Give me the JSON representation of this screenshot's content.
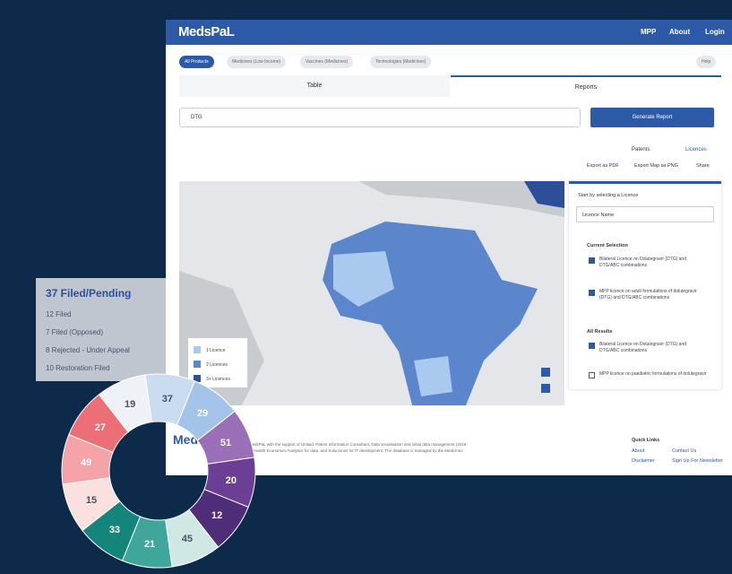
{
  "header": {
    "logo": "MedsPaL",
    "nav": [
      "MPP",
      "About",
      "Login"
    ]
  },
  "filters": [
    "All Products",
    "Medicines (Low Income)",
    "Vaccines (Medicines)",
    "Technologies (Medicines)"
  ],
  "help": "Help",
  "tabs": [
    "Table",
    "Reports"
  ],
  "select": "DTG",
  "generate": "Generate Report",
  "views": [
    "Patents",
    "Licences"
  ],
  "exports": [
    "Export as PDF",
    "Export Map as PNG",
    "Share"
  ],
  "map_legend": [
    "1 Licence",
    "2 Licences",
    "3+ Licences"
  ],
  "panel": {
    "title": "Start by selecting a Licence",
    "input": "Licence Name",
    "current_title": "Current Selection",
    "current": [
      "Bilateral Licence on Dolutegravir (DTG) and DTG/ABC combinations",
      "MPP licence on adult formulations of dolutegravir (DTG) and DTG/ABC combinations"
    ],
    "results_title": "All Results",
    "results": [
      "Bilateral Licence on Dolutegravir (DTG) and DTG/ABC combinations",
      "MPP licence on paediatric formulations of dolutegravir"
    ]
  },
  "footer": {
    "logo": "MedsPaL",
    "text": "Developed MedsPaL with the support of Unitaid. Patent Information Consultant, Data visualisation and initial data management (2016-2018), Global Health Economics Analytics for data, and Soluciones for IT development. The database is managed by the Medicines Patent Pool.",
    "quick_links": "Quick Links",
    "links": [
      "About",
      "Contact Us",
      "Disclaimer",
      "Sign Up For Newsletter"
    ]
  },
  "status": {
    "title": "37 Filed/Pending",
    "lines": [
      "12 Filed",
      "7 Filed (Opposed)",
      "8 Rejected - Under Appeal",
      "10 Restoration Filed"
    ]
  },
  "donut": [
    {
      "value": 37,
      "color": "#c9dcf0"
    },
    {
      "value": 29,
      "color": "#a3c3e8"
    },
    {
      "value": 51,
      "color": "#9b6fb8"
    },
    {
      "value": 20,
      "color": "#6b3f94"
    },
    {
      "value": 12,
      "color": "#4f2d78"
    },
    {
      "value": 45,
      "color": "#cfe8e4"
    },
    {
      "value": 21,
      "color": "#3ea69a"
    },
    {
      "value": 33,
      "color": "#14857a"
    },
    {
      "value": 15,
      "color": "#fbe0e0"
    },
    {
      "value": 49,
      "color": "#f4a3a8"
    },
    {
      "value": 27,
      "color": "#ec6f78"
    },
    {
      "value": 19,
      "color": "#eef2f7"
    }
  ]
}
